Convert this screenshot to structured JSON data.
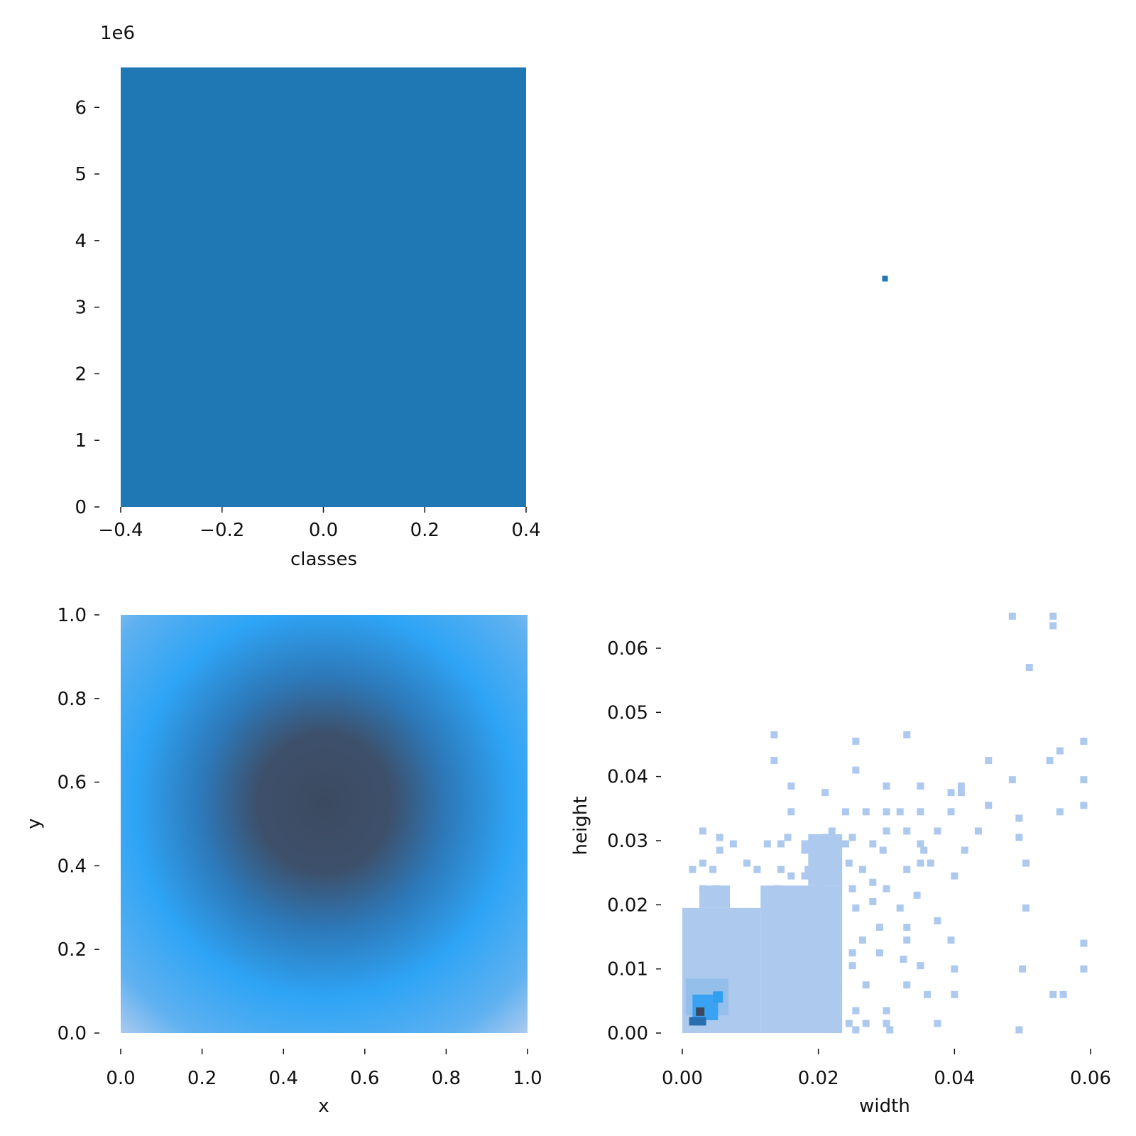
{
  "chart_data": [
    {
      "panel": "top-left",
      "type": "bar",
      "categories": [
        0
      ],
      "values": [
        6600000
      ],
      "xlabel": "classes",
      "ylabel": "",
      "xlim": [
        -0.4,
        0.4
      ],
      "ylim": [
        0,
        6600000
      ],
      "x_ticks": [
        "−0.4",
        "−0.2",
        "0.0",
        "0.2",
        "0.4"
      ],
      "y_ticks": [
        "0",
        "1",
        "2",
        "3",
        "4",
        "5",
        "6"
      ],
      "y_offset_label": "1e6",
      "color": "#1f77b4",
      "grid": false
    },
    {
      "panel": "top-right",
      "type": "scatter",
      "points": [
        {
          "x": 0.5,
          "y": 0.5
        }
      ],
      "xlabel": "",
      "ylabel": "",
      "axes_visible": false,
      "color": "#1f77b4"
    },
    {
      "panel": "bottom-left",
      "type": "heatmap",
      "xlabel": "x",
      "ylabel": "y",
      "xlim": [
        0.0,
        1.0
      ],
      "ylim": [
        0.0,
        1.0
      ],
      "x_ticks": [
        "0.0",
        "0.2",
        "0.4",
        "0.6",
        "0.8",
        "1.0"
      ],
      "y_ticks": [
        "0.0",
        "0.2",
        "0.4",
        "0.6",
        "0.8",
        "1.0"
      ],
      "peak": {
        "x": 0.5,
        "y": 0.55
      },
      "colormap": [
        "#b0cbef",
        "#2ea4f5",
        "#3c4a60"
      ],
      "grid": false
    },
    {
      "panel": "bottom-right",
      "type": "heatmap",
      "xlabel": "width",
      "ylabel": "height",
      "xlim": [
        0.0,
        0.06
      ],
      "ylim": [
        0.0,
        0.065
      ],
      "x_ticks": [
        "0.00",
        "0.02",
        "0.04",
        "0.06"
      ],
      "y_ticks": [
        "0.00",
        "0.01",
        "0.02",
        "0.03",
        "0.04",
        "0.05",
        "0.06"
      ],
      "peak": {
        "x": 0.003,
        "y": 0.003
      },
      "sparse_cells": [
        [
          0.0485,
          0.065
        ],
        [
          0.0545,
          0.065
        ],
        [
          0.0545,
          0.0635
        ],
        [
          0.051,
          0.057
        ],
        [
          0.0135,
          0.0465
        ],
        [
          0.033,
          0.0465
        ],
        [
          0.0255,
          0.0455
        ],
        [
          0.059,
          0.0455
        ],
        [
          0.0135,
          0.0425
        ],
        [
          0.045,
          0.0425
        ],
        [
          0.054,
          0.0425
        ],
        [
          0.0555,
          0.044
        ],
        [
          0.0255,
          0.041
        ],
        [
          0.0485,
          0.0395
        ],
        [
          0.059,
          0.0395
        ],
        [
          0.016,
          0.0385
        ],
        [
          0.03,
          0.0385
        ],
        [
          0.035,
          0.0385
        ],
        [
          0.041,
          0.0385
        ],
        [
          0.021,
          0.0375
        ],
        [
          0.0395,
          0.0375
        ],
        [
          0.041,
          0.0375
        ],
        [
          0.045,
          0.0355
        ],
        [
          0.059,
          0.0355
        ],
        [
          0.016,
          0.0345
        ],
        [
          0.024,
          0.0345
        ],
        [
          0.027,
          0.0345
        ],
        [
          0.03,
          0.0345
        ],
        [
          0.032,
          0.0345
        ],
        [
          0.035,
          0.0345
        ],
        [
          0.0395,
          0.0345
        ],
        [
          0.0555,
          0.0345
        ],
        [
          0.0495,
          0.0335
        ],
        [
          0.003,
          0.0315
        ],
        [
          0.022,
          0.0315
        ],
        [
          0.03,
          0.0315
        ],
        [
          0.033,
          0.0315
        ],
        [
          0.0375,
          0.0315
        ],
        [
          0.0435,
          0.0315
        ],
        [
          0.0055,
          0.0305
        ],
        [
          0.0155,
          0.0305
        ],
        [
          0.021,
          0.0305
        ],
        [
          0.025,
          0.0305
        ],
        [
          0.0495,
          0.0305
        ],
        [
          0.0075,
          0.0295
        ],
        [
          0.0125,
          0.0295
        ],
        [
          0.0145,
          0.0295
        ],
        [
          0.018,
          0.0295
        ],
        [
          0.024,
          0.0295
        ],
        [
          0.028,
          0.0295
        ],
        [
          0.035,
          0.0295
        ],
        [
          0.0055,
          0.0285
        ],
        [
          0.018,
          0.0285
        ],
        [
          0.0295,
          0.0285
        ],
        [
          0.0355,
          0.0285
        ],
        [
          0.0415,
          0.0285
        ],
        [
          0.003,
          0.0265
        ],
        [
          0.0095,
          0.0265
        ],
        [
          0.0245,
          0.0265
        ],
        [
          0.035,
          0.0265
        ],
        [
          0.0365,
          0.0265
        ],
        [
          0.0505,
          0.0265
        ],
        [
          0.0015,
          0.0255
        ],
        [
          0.0045,
          0.0255
        ],
        [
          0.011,
          0.0255
        ],
        [
          0.0145,
          0.0255
        ],
        [
          0.0185,
          0.0255
        ],
        [
          0.0215,
          0.0255
        ],
        [
          0.0265,
          0.0255
        ],
        [
          0.033,
          0.0255
        ],
        [
          0.04,
          0.0245
        ],
        [
          0.016,
          0.0245
        ],
        [
          0.018,
          0.0245
        ],
        [
          0.028,
          0.0235
        ],
        [
          0.003,
          0.0225
        ],
        [
          0.005,
          0.0225
        ],
        [
          0.014,
          0.0225
        ],
        [
          0.02,
          0.0225
        ],
        [
          0.025,
          0.0225
        ],
        [
          0.03,
          0.0225
        ],
        [
          0.0345,
          0.0215
        ],
        [
          0.0255,
          0.0195
        ],
        [
          0.028,
          0.0205
        ],
        [
          0.032,
          0.0195
        ],
        [
          0.0505,
          0.0195
        ],
        [
          0.0375,
          0.0175
        ],
        [
          0.029,
          0.0165
        ],
        [
          0.033,
          0.0165
        ],
        [
          0.0265,
          0.0145
        ],
        [
          0.033,
          0.0145
        ],
        [
          0.0395,
          0.0145
        ],
        [
          0.059,
          0.014
        ],
        [
          0.025,
          0.0125
        ],
        [
          0.029,
          0.0125
        ],
        [
          0.0325,
          0.0115
        ],
        [
          0.025,
          0.0105
        ],
        [
          0.035,
          0.0105
        ],
        [
          0.04,
          0.01
        ],
        [
          0.05,
          0.01
        ],
        [
          0.059,
          0.01
        ],
        [
          0.027,
          0.0075
        ],
        [
          0.033,
          0.0075
        ],
        [
          0.036,
          0.006
        ],
        [
          0.04,
          0.006
        ],
        [
          0.0545,
          0.006
        ],
        [
          0.056,
          0.006
        ],
        [
          0.021,
          0.0045
        ],
        [
          0.0255,
          0.0035
        ],
        [
          0.03,
          0.0035
        ],
        [
          0.0245,
          0.0015
        ],
        [
          0.027,
          0.0015
        ],
        [
          0.03,
          0.0015
        ],
        [
          0.0375,
          0.0015
        ],
        [
          0.0495,
          0.0005
        ],
        [
          0.0255,
          0.0005
        ],
        [
          0.0305,
          0.0005
        ]
      ],
      "colormap": [
        "#adc9ee",
        "#2f9ff0",
        "#3b4a60"
      ],
      "grid": false
    }
  ]
}
